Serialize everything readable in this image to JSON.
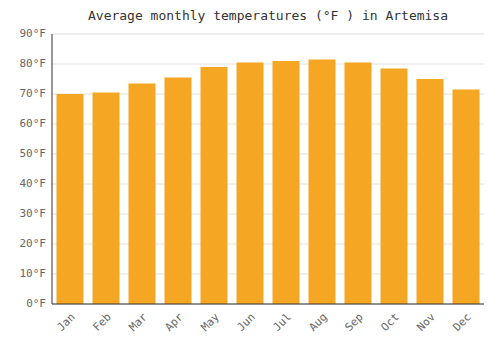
{
  "chart_data": {
    "type": "bar",
    "title": "Average monthly temperatures (°F ) in Artemisa",
    "categories": [
      "Jan",
      "Feb",
      "Mar",
      "Apr",
      "May",
      "Jun",
      "Jul",
      "Aug",
      "Sep",
      "Oct",
      "Nov",
      "Dec"
    ],
    "values": [
      70,
      70.5,
      73.5,
      75.5,
      79,
      80.5,
      81,
      81.5,
      80.5,
      78.5,
      75,
      71.5
    ],
    "color": "#F5A623",
    "ylim": [
      0,
      90
    ],
    "yticks": [
      {
        "value": 0,
        "label": "0°F"
      },
      {
        "value": 10,
        "label": "10°F"
      },
      {
        "value": 20,
        "label": "20°F"
      },
      {
        "value": 30,
        "label": "30°F"
      },
      {
        "value": 40,
        "label": "40°F"
      },
      {
        "value": 50,
        "label": "50°F"
      },
      {
        "value": 60,
        "label": "60°F"
      },
      {
        "value": 70,
        "label": "70°F"
      },
      {
        "value": 80,
        "label": "80°F"
      },
      {
        "value": 90,
        "label": "90°F"
      }
    ],
    "grid": true
  }
}
